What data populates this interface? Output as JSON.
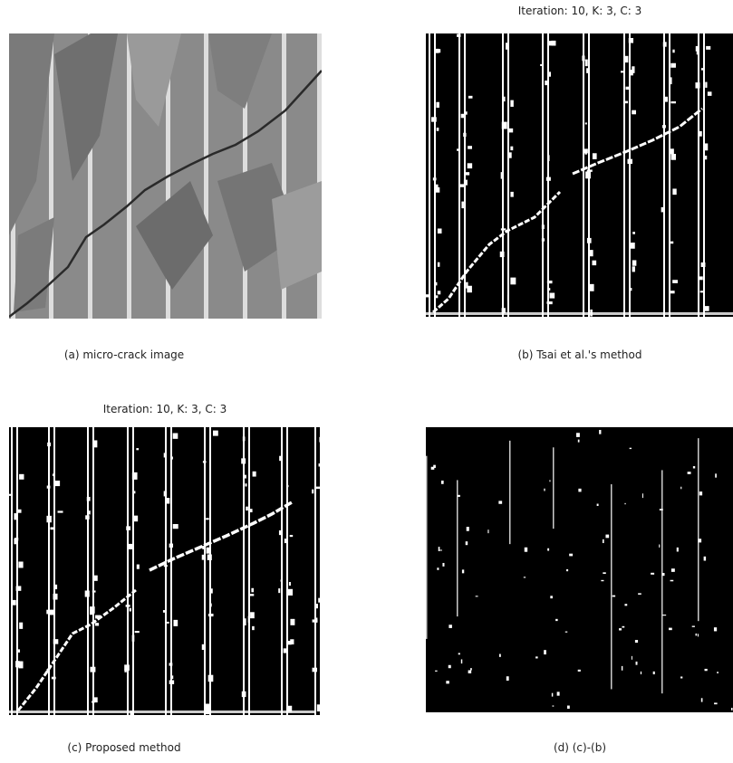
{
  "panels": [
    {
      "caption": "(a) micro-crack image"
    },
    {
      "title": "Iteration: 10, K: 3, C: 3",
      "caption": "(b) Tsai et al.'s method"
    },
    {
      "title": "Iteration: 10, K: 3, C: 3",
      "caption": "(c) Proposed method"
    },
    {
      "caption": "(d) (c)-(b)"
    }
  ]
}
